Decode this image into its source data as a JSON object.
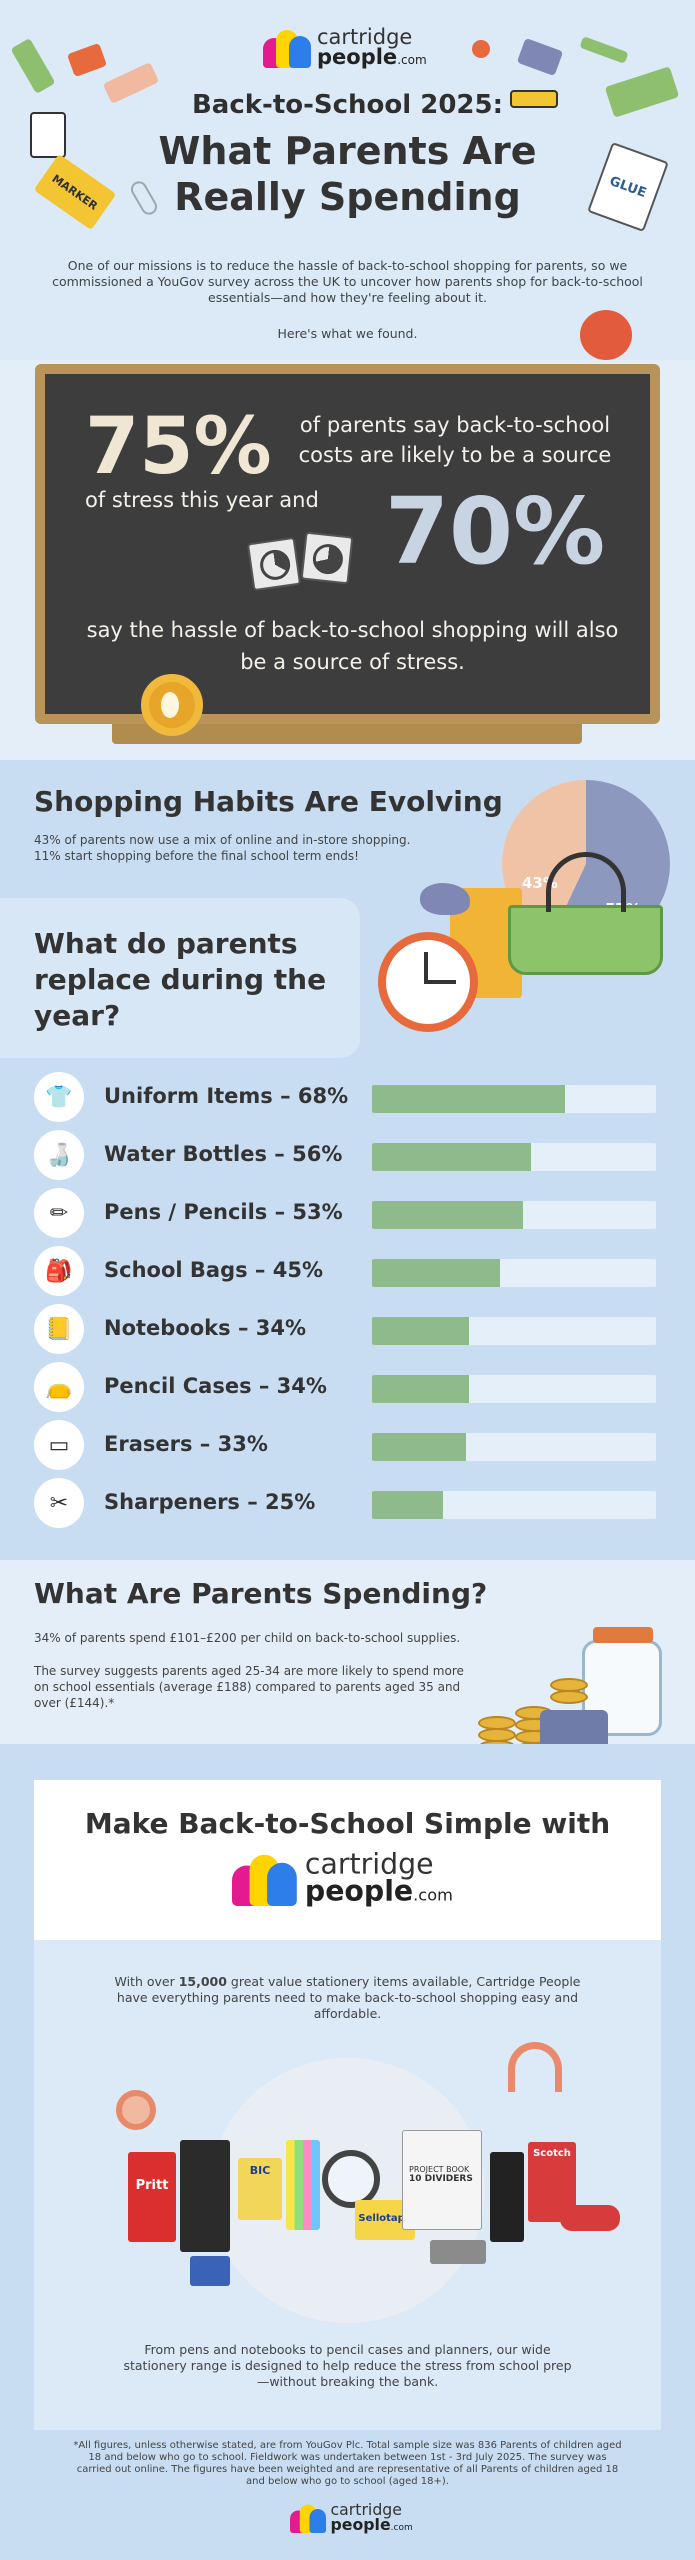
{
  "brand": {
    "line1": "cartridge",
    "line2": "people",
    "suffix": ".com"
  },
  "header": {
    "kicker": "Back-to-School 2025:",
    "title": "What Parents Are Really Spending",
    "intro": "One of our missions is to reduce the hassle of back-to-school shopping for parents, so we commissioned a YouGov survey across the UK to uncover how parents shop for back-to-school essentials—and how they're feeling about it.",
    "intro2": "Here's what we found.",
    "stickers": {
      "marker": "MARKER",
      "glue": "GLUE"
    }
  },
  "chalkboard": {
    "stat1": "75%",
    "stat1_text": "of parents say back-to-school costs are likely to be a source",
    "stat1_text2": "of stress this year and",
    "stat2": "70%",
    "stat2_text": "say the hassle of back-to-school shopping will also be a source of stress."
  },
  "habits": {
    "heading": "Shopping Habits Are Evolving",
    "line1": "43% of parents now use a mix of online and in-store shopping.",
    "line2": "11% start shopping before the final school term ends!",
    "pie": {
      "online_instore_pct": 43,
      "other_pct": 57,
      "label_a": "43%",
      "label_b": "57%"
    }
  },
  "replace": {
    "heading": "What do parents replace during the year?",
    "items": [
      {
        "label": "Uniform Items – 68%",
        "pct": 68,
        "icon": "shirt-icon"
      },
      {
        "label": "Water Bottles – 56%",
        "pct": 56,
        "icon": "bottle-icon"
      },
      {
        "label": "Pens / Pencils – 53%",
        "pct": 53,
        "icon": "pencil-icon"
      },
      {
        "label": "School Bags – 45%",
        "pct": 45,
        "icon": "backpack-icon"
      },
      {
        "label": "Notebooks – 34%",
        "pct": 34,
        "icon": "notebook-icon"
      },
      {
        "label": "Pencil Cases – 34%",
        "pct": 34,
        "icon": "pencil-case-icon"
      },
      {
        "label": "Erasers – 33%",
        "pct": 33,
        "icon": "eraser-icon"
      },
      {
        "label": "Sharpeners – 25%",
        "pct": 25,
        "icon": "sharpener-icon"
      }
    ]
  },
  "spending": {
    "heading": "What Are Parents Spending?",
    "line1": "34% of parents spend £101–£200 per child on back-to-school supplies.",
    "line2": "The survey suggests parents aged 25-34 are more likely to spend more on school essentials (average £188) compared to parents aged 35 and over (£144).*"
  },
  "simple": {
    "heading": "Make Back-to-School Simple with",
    "body_pre": "With over ",
    "body_num": "15,000",
    "body_post": " great value stationery items available, Cartridge People have everything parents need to make back-to-school shopping easy and affordable.",
    "closing": "From pens and notebooks to pencil cases and planners, our wide stationery range is designed to help reduce the stress from school prep—without breaking the bank.",
    "product_labels": {
      "pritt": "Pritt",
      "bic": "BIC",
      "sellotape": "Sellotape",
      "book_title": "PROJECT BOOK",
      "book_sub": "10 DIVIDERS",
      "scotch": "Scotch"
    }
  },
  "footnote": "*All figures, unless otherwise stated, are from YouGov Plc. Total sample size was 836 Parents of children aged 18 and below who go to school. Fieldwork was undertaken between 1st - 3rd July 2025. The survey was carried out online. The figures have been weighted and are representative of all Parents of children aged 18 and below who go to school (aged 18+).",
  "colors": {
    "bar_fill": "#8fbb8c",
    "bar_track": "#e4effa",
    "board": "#3d3d3d",
    "frame": "#b8935a",
    "band": "#c9ddf2"
  }
}
